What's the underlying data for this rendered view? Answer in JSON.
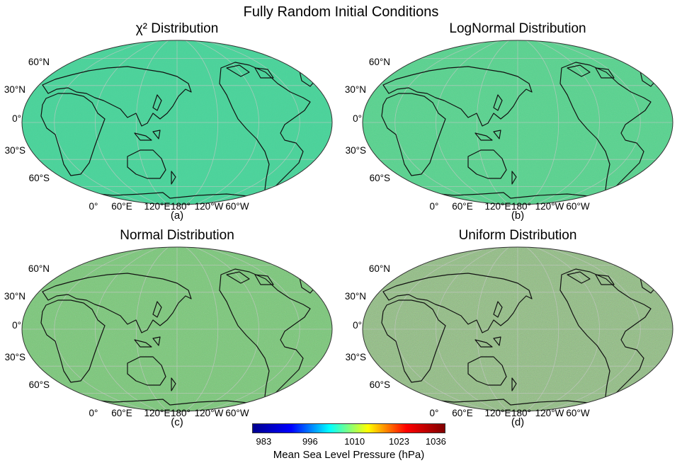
{
  "main_title": "Fully Random Initial Conditions",
  "lat_labels": [
    "60°N",
    "30°N",
    "0°",
    "30°S",
    "60°S"
  ],
  "lon_labels": [
    "0°",
    "60°E",
    "120°E",
    "180°",
    "120°W",
    "60°W"
  ],
  "panels": [
    {
      "title": "χ² Distribution",
      "label": "(a)",
      "base_color": "#48d49a",
      "noise": 0.1
    },
    {
      "title": "LogNormal Distribution",
      "label": "(b)",
      "base_color": "#56d48e",
      "noise": 0.18
    },
    {
      "title": "Normal Distribution",
      "label": "(c)",
      "base_color": "#79c978",
      "noise": 0.28
    },
    {
      "title": "Uniform Distribution",
      "label": "(d)",
      "base_color": "#8fbf80",
      "noise": 0.42
    }
  ],
  "colorbar": {
    "ticks": [
      "983",
      "996",
      "1010",
      "1023",
      "1036"
    ],
    "label": "Mean Sea Level Pressure (hPa)",
    "colors": [
      "#00008f",
      "#0000ff",
      "#00ffff",
      "#ffff00",
      "#ff0000",
      "#800000"
    ]
  }
}
